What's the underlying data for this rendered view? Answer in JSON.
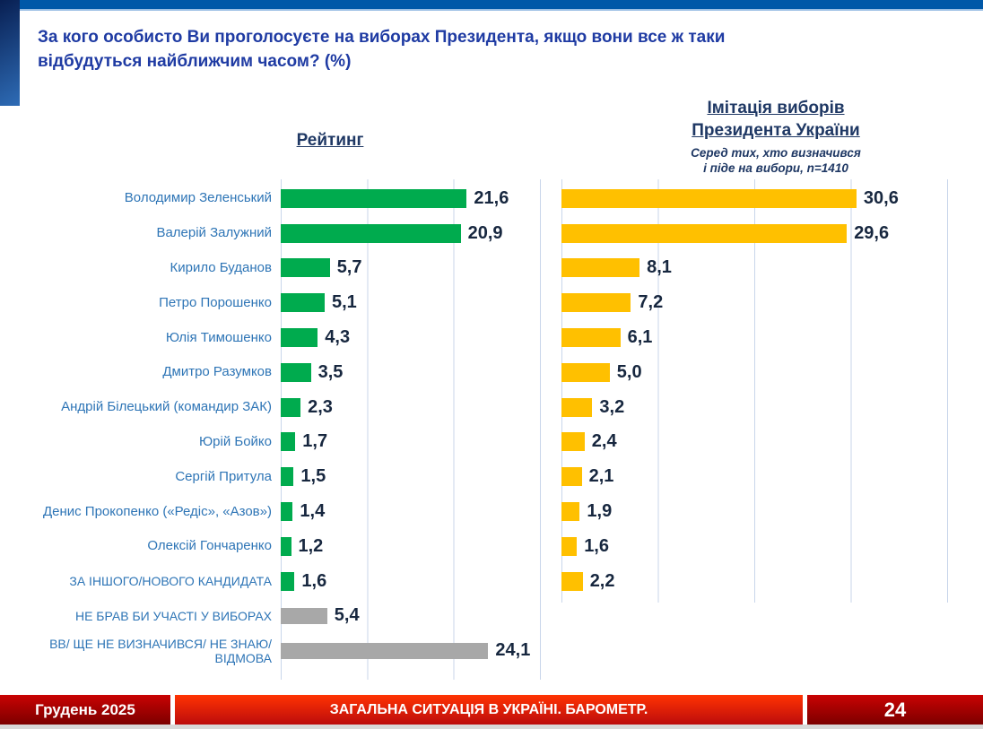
{
  "slide": {
    "title": "За кого особисто Ви проголосуєте на виборах Президента, якщо вони все ж таки відбудуться найближчим часом? (%)"
  },
  "chart_data": {
    "type": "bar",
    "orientation": "horizontal",
    "unit": "percent",
    "decimal_separator": ",",
    "grid": true,
    "left_chart": {
      "title": "Рейтинг",
      "xlim": [
        0,
        30
      ],
      "gridline_step": 10,
      "bar_color": "#00AB4E",
      "nonvoter_bar_color": "#A8A8A8"
    },
    "right_chart": {
      "title_line1": "Імітація виборів",
      "title_line2": "Президента України",
      "subtitle_line1": "Серед тих, хто визначився",
      "subtitle_line2": "і піде на вибори, n=1410",
      "xlim": [
        0,
        40
      ],
      "gridline_step": 10,
      "bar_color": "#FFC000"
    },
    "categories": [
      {
        "label": "Володимир Зеленський"
      },
      {
        "label": "Валерій Залужний"
      },
      {
        "label": "Кирило Буданов"
      },
      {
        "label": "Петро Порошенко"
      },
      {
        "label": "Юлія Тимошенко"
      },
      {
        "label": "Дмитро Разумков"
      },
      {
        "label": "Андрій Білецький (командир ЗАК)"
      },
      {
        "label": "Юрій Бойко"
      },
      {
        "label": "Сергій Притула"
      },
      {
        "label": "Денис Прокопенко («Редіс», «Азов»)"
      },
      {
        "label": "Олексій Гончаренко"
      },
      {
        "label": "ЗА ІНШОГО/НОВОГО КАНДИДАТА",
        "caps": true
      },
      {
        "label": "НЕ БРАВ БИ УЧАСТІ У ВИБОРАХ",
        "caps": true,
        "gray": true
      },
      {
        "label": "ВВ/ ЩЕ НЕ ВИЗНАЧИВСЯ/ НЕ ЗНАЮ/ ВІДМОВА",
        "caps": true,
        "gray": true
      }
    ],
    "series": [
      {
        "name": "Рейтинг",
        "values": [
          21.6,
          20.9,
          5.7,
          5.1,
          4.3,
          3.5,
          2.3,
          1.7,
          1.5,
          1.4,
          1.2,
          1.6,
          5.4,
          24.1
        ]
      },
      {
        "name": "Імітація виборів Президента України",
        "values": [
          30.6,
          29.6,
          8.1,
          7.2,
          6.1,
          5.0,
          3.2,
          2.4,
          2.1,
          1.9,
          1.6,
          2.2,
          null,
          null
        ]
      }
    ]
  },
  "footer": {
    "date": "Грудень 2025",
    "title": "ЗАГАЛЬНА СИТУАЦІЯ В УКРАЇНІ. БАРОМЕТР.",
    "page": "24"
  }
}
